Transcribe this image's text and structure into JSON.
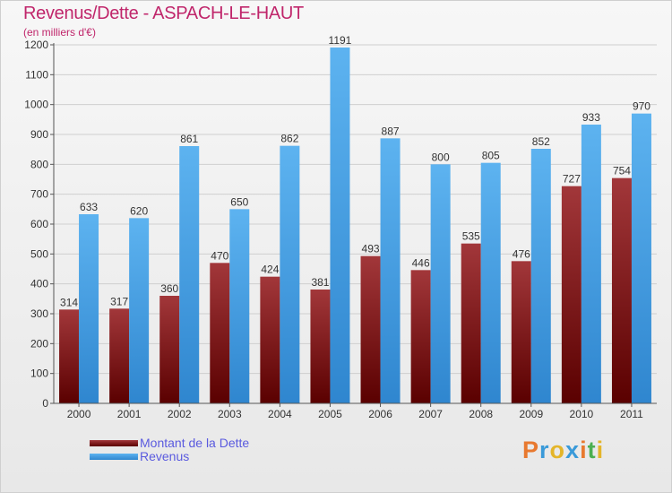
{
  "title": "Revenus/Dette - ASPACH-LE-HAUT",
  "subtitle": "(en milliers d'€)",
  "logo": {
    "text": "Proxiti",
    "colors": [
      "#e8792f",
      "#3a9ad9",
      "#e4b52a",
      "#3a9ad9",
      "#e8792f",
      "#4caf50",
      "#e4b52a"
    ]
  },
  "colors": {
    "dette": "#8b1a1a",
    "revenus": "#4aa3e8",
    "axis": "#555555",
    "grid": "#cfcfcf"
  },
  "chart_data": {
    "type": "bar",
    "categories": [
      "2000",
      "2001",
      "2002",
      "2003",
      "2004",
      "2005",
      "2006",
      "2007",
      "2008",
      "2009",
      "2010",
      "2011"
    ],
    "series": [
      {
        "name": "Montant de la Dette",
        "values": [
          314,
          317,
          360,
          470,
          424,
          381,
          493,
          446,
          535,
          476,
          727,
          754
        ]
      },
      {
        "name": "Revenus",
        "values": [
          633,
          620,
          861,
          650,
          862,
          1191,
          887,
          800,
          805,
          852,
          933,
          970
        ]
      }
    ],
    "yticks": [
      0,
      100,
      200,
      300,
      400,
      500,
      600,
      700,
      800,
      900,
      1000,
      1100,
      1200
    ],
    "ylim": [
      0,
      1200
    ],
    "grid": true,
    "legend": "bottom-left"
  }
}
